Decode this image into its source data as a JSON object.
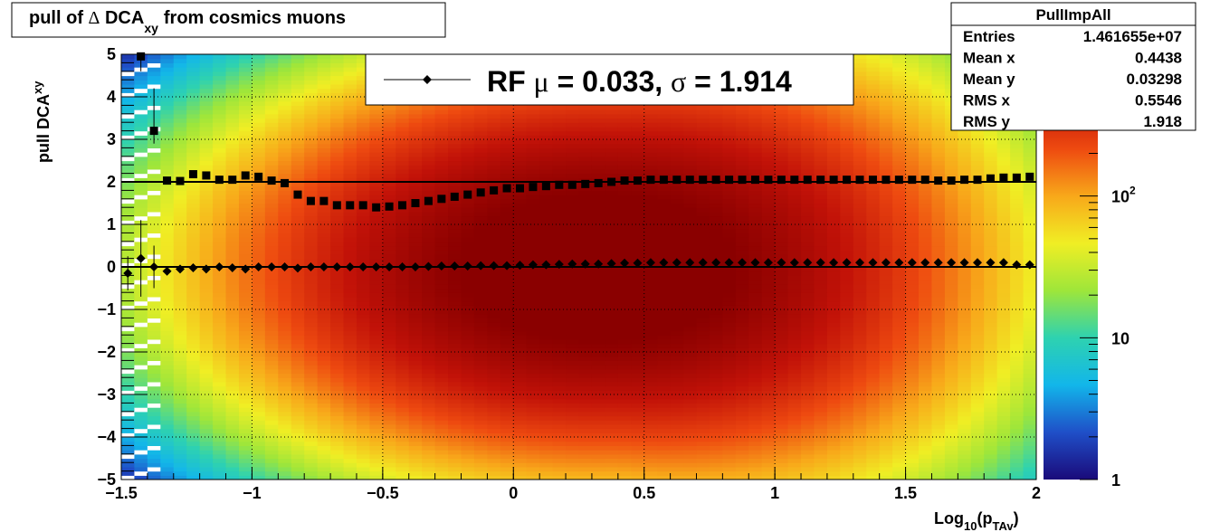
{
  "chart_data": {
    "type": "heatmap",
    "title": {
      "main": "pull of ",
      "delta": "Δ",
      "dca": " DCA",
      "sub": "xy",
      "rest": "from cosmics muons"
    },
    "xlabel": {
      "main": "Log",
      "sub1": "10",
      "mid": "(p",
      "sub2": "TAv",
      "end": ")"
    },
    "ylabel": {
      "main": "pull DCA",
      "sub": "xy"
    },
    "xlim": [
      -1.5,
      2
    ],
    "ylim": [
      -5,
      5
    ],
    "xticks": [
      -1.5,
      -1,
      -0.5,
      0,
      0.5,
      1,
      1.5,
      2
    ],
    "xtick_labels": [
      "−1.5",
      "−1",
      "−0.5",
      "0",
      "0.5",
      "1",
      "1.5",
      "2"
    ],
    "yticks": [
      -5,
      -4,
      -3,
      -2,
      -1,
      0,
      1,
      2,
      3,
      4,
      5
    ],
    "ytick_labels": [
      "−5",
      "−4",
      "−3",
      "−2",
      "−1",
      "0",
      "1",
      "2",
      "3",
      "4",
      "5"
    ],
    "grid": true,
    "colorbar": {
      "scale": "log",
      "range": [
        1,
        1000
      ],
      "tick_labels": [
        {
          "value": 1,
          "text": "1",
          "sup": ""
        },
        {
          "value": 10,
          "text": "10",
          "sup": ""
        },
        {
          "value": 100,
          "text": "10",
          "sup": "2"
        }
      ],
      "colors": [
        "#1a0a7a",
        "#1f4fc8",
        "#12b6ea",
        "#2ed2b0",
        "#9ee63a",
        "#f0ee24",
        "#f8a81a",
        "#ee4a10",
        "#c21208",
        "#8a0000"
      ]
    },
    "legend": {
      "placement": "top-center",
      "label_prefix": "RF ",
      "mu_symbol": "μ",
      "mu_text": " =  0.033, ",
      "sigma_symbol": "σ",
      "sigma_text": " =   1.914"
    },
    "stats_box": {
      "placement": "top-right",
      "title": "PullImpAll",
      "rows": [
        {
          "label": "Entries",
          "value": "1.461655e+07"
        },
        {
          "label": "Mean x",
          "value": "0.4438"
        },
        {
          "label": "Mean y",
          "value": "0.03298"
        },
        {
          "label": "RMS x",
          "value": "0.5546"
        },
        {
          "label": "RMS y",
          "value": "1.918"
        }
      ]
    },
    "reference_lines": [
      0,
      2
    ],
    "series": [
      {
        "marker": "diamond",
        "x": [
          -1.475,
          -1.425,
          -1.375,
          -1.325,
          -1.275,
          -1.225,
          -1.175,
          -1.125,
          -1.075,
          -1.025,
          -0.975,
          -0.925,
          -0.875,
          -0.825,
          -0.775,
          -0.725,
          -0.675,
          -0.625,
          -0.575,
          -0.525,
          -0.475,
          -0.425,
          -0.375,
          -0.325,
          -0.275,
          -0.225,
          -0.175,
          -0.125,
          -0.075,
          -0.025,
          0.025,
          0.075,
          0.125,
          0.175,
          0.225,
          0.275,
          0.325,
          0.375,
          0.425,
          0.475,
          0.525,
          0.575,
          0.625,
          0.675,
          0.725,
          0.775,
          0.825,
          0.875,
          0.925,
          0.975,
          1.025,
          1.075,
          1.125,
          1.175,
          1.225,
          1.275,
          1.325,
          1.375,
          1.425,
          1.475,
          1.525,
          1.575,
          1.625,
          1.675,
          1.725,
          1.775,
          1.825,
          1.875,
          1.925,
          1.975
        ],
        "y": [
          -0.15,
          0.2,
          0,
          -0.1,
          -0.05,
          -0.02,
          -0.05,
          0,
          -0.02,
          -0.05,
          0,
          0,
          0,
          -0.03,
          0,
          0,
          0,
          0,
          0,
          0,
          0,
          0,
          0,
          0.01,
          0.02,
          0.02,
          0.02,
          0.03,
          0.03,
          0.03,
          0.04,
          0.05,
          0.05,
          0.06,
          0.07,
          0.07,
          0.07,
          0.08,
          0.09,
          0.09,
          0.1,
          0.1,
          0.1,
          0.1,
          0.1,
          0.1,
          0.1,
          0.1,
          0.1,
          0.1,
          0.1,
          0.1,
          0.1,
          0.1,
          0.1,
          0.1,
          0.1,
          0.1,
          0.1,
          0.1,
          0.1,
          0.1,
          0.1,
          0.1,
          0.1,
          0.1,
          0.1,
          0.1,
          0.05,
          0.05
        ],
        "yerr_low": [
          0.4,
          0.9,
          0.5,
          0.1,
          0.05,
          0.03,
          0.02,
          0.02,
          0.02,
          0.02,
          0.01,
          0.01,
          0.01,
          0.01,
          0.01,
          0.01,
          0.01,
          0.01,
          0.01,
          0.01,
          0.01,
          0.01,
          0.01,
          0.01,
          0.01,
          0.01,
          0.01,
          0.01,
          0.01,
          0.01,
          0.01,
          0.01,
          0.01,
          0.01,
          0.01,
          0.01,
          0.01,
          0.01,
          0.01,
          0.01,
          0.01,
          0.01,
          0.01,
          0.01,
          0.01,
          0.01,
          0.01,
          0.01,
          0.01,
          0.01,
          0.01,
          0.01,
          0.01,
          0.01,
          0.01,
          0.01,
          0.01,
          0.01,
          0.01,
          0.01,
          0.01,
          0.01,
          0.01,
          0.01,
          0.01,
          0.01,
          0.01,
          0.01,
          0.01,
          0.01
        ],
        "yerr_high": [
          0.4,
          0.9,
          0.5,
          0.1,
          0.05,
          0.03,
          0.02,
          0.02,
          0.02,
          0.02,
          0.01,
          0.01,
          0.01,
          0.01,
          0.01,
          0.01,
          0.01,
          0.01,
          0.01,
          0.01,
          0.01,
          0.01,
          0.01,
          0.01,
          0.01,
          0.01,
          0.01,
          0.01,
          0.01,
          0.01,
          0.01,
          0.01,
          0.01,
          0.01,
          0.01,
          0.01,
          0.01,
          0.01,
          0.01,
          0.01,
          0.01,
          0.01,
          0.01,
          0.01,
          0.01,
          0.01,
          0.01,
          0.01,
          0.01,
          0.01,
          0.01,
          0.01,
          0.01,
          0.01,
          0.01,
          0.01,
          0.01,
          0.01,
          0.01,
          0.01,
          0.01,
          0.01,
          0.01,
          0.01,
          0.01,
          0.01,
          0.01,
          0.01,
          0.01,
          0.01
        ]
      },
      {
        "marker": "square",
        "x": [
          -1.425,
          -1.375,
          -1.325,
          -1.275,
          -1.225,
          -1.175,
          -1.125,
          -1.075,
          -1.025,
          -0.975,
          -0.925,
          -0.875,
          -0.825,
          -0.775,
          -0.725,
          -0.675,
          -0.625,
          -0.575,
          -0.525,
          -0.475,
          -0.425,
          -0.375,
          -0.325,
          -0.275,
          -0.225,
          -0.175,
          -0.125,
          -0.075,
          -0.025,
          0.025,
          0.075,
          0.125,
          0.175,
          0.225,
          0.275,
          0.325,
          0.375,
          0.425,
          0.475,
          0.525,
          0.575,
          0.625,
          0.675,
          0.725,
          0.775,
          0.825,
          0.875,
          0.925,
          0.975,
          1.025,
          1.075,
          1.125,
          1.175,
          1.225,
          1.275,
          1.325,
          1.375,
          1.425,
          1.475,
          1.525,
          1.575,
          1.625,
          1.675,
          1.725,
          1.775,
          1.825,
          1.875,
          1.925,
          1.975
        ],
        "y": [
          4.95,
          3.2,
          2.03,
          2.02,
          2.18,
          2.15,
          2.05,
          2.05,
          2.15,
          2.12,
          2.03,
          1.97,
          1.7,
          1.55,
          1.55,
          1.45,
          1.45,
          1.45,
          1.4,
          1.42,
          1.45,
          1.5,
          1.55,
          1.6,
          1.65,
          1.7,
          1.75,
          1.8,
          1.85,
          1.85,
          1.88,
          1.9,
          1.93,
          1.93,
          1.95,
          1.97,
          2.0,
          2.03,
          2.03,
          2.05,
          2.05,
          2.05,
          2.05,
          2.05,
          2.05,
          2.05,
          2.05,
          2.05,
          2.05,
          2.05,
          2.05,
          2.05,
          2.05,
          2.05,
          2.05,
          2.05,
          2.05,
          2.05,
          2.05,
          2.05,
          2.05,
          2.03,
          2.03,
          2.05,
          2.05,
          2.08,
          2.1,
          2.1,
          2.12
        ],
        "yerr_low": [
          0.35,
          0.3,
          0.05,
          0.03,
          0.03,
          0.02,
          0.02,
          0.02,
          0.02,
          0.02,
          0.02,
          0.02,
          0.02,
          0.01,
          0.01,
          0.01,
          0.01,
          0.01,
          0.01,
          0.01,
          0.01,
          0.01,
          0.01,
          0.01,
          0.01,
          0.01,
          0.01,
          0.01,
          0.01,
          0.01,
          0.01,
          0.01,
          0.01,
          0.01,
          0.01,
          0.01,
          0.01,
          0.01,
          0.01,
          0.01,
          0.01,
          0.01,
          0.01,
          0.01,
          0.01,
          0.01,
          0.01,
          0.01,
          0.01,
          0.01,
          0.01,
          0.01,
          0.01,
          0.01,
          0.01,
          0.01,
          0.01,
          0.01,
          0.01,
          0.01,
          0.01,
          0.01,
          0.01,
          0.01,
          0.01,
          0.01,
          0.01,
          0.01,
          0.01
        ],
        "yerr_high": [
          0.05,
          1.0,
          0.05,
          0.03,
          0.03,
          0.02,
          0.02,
          0.02,
          0.02,
          0.02,
          0.02,
          0.02,
          0.02,
          0.01,
          0.01,
          0.01,
          0.01,
          0.01,
          0.01,
          0.01,
          0.01,
          0.01,
          0.01,
          0.01,
          0.01,
          0.01,
          0.01,
          0.01,
          0.01,
          0.01,
          0.01,
          0.01,
          0.01,
          0.01,
          0.01,
          0.01,
          0.01,
          0.01,
          0.01,
          0.01,
          0.01,
          0.01,
          0.01,
          0.01,
          0.01,
          0.01,
          0.01,
          0.01,
          0.01,
          0.01,
          0.01,
          0.01,
          0.01,
          0.01,
          0.01,
          0.01,
          0.01,
          0.01,
          0.01,
          0.01,
          0.01,
          0.01,
          0.01,
          0.01,
          0.01,
          0.01,
          0.01,
          0.01,
          0.01
        ]
      }
    ]
  }
}
